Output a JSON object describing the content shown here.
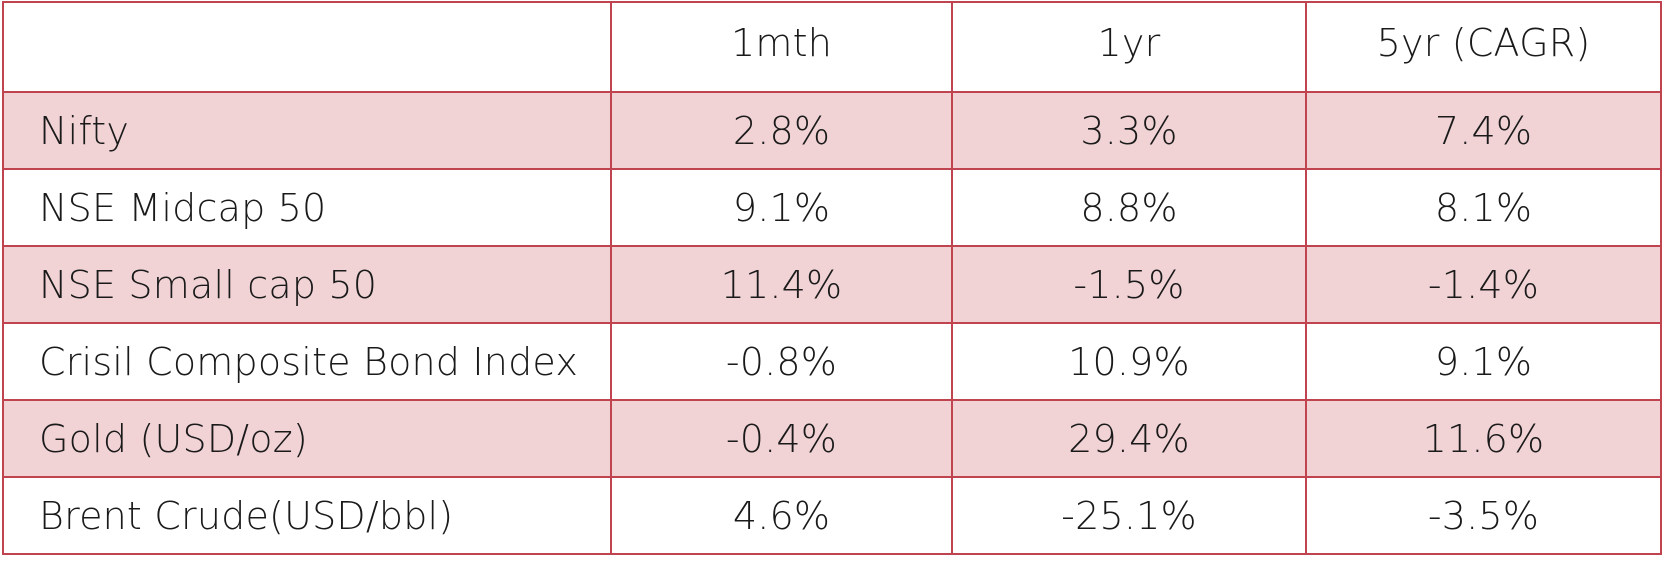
{
  "table": {
    "headers": [
      "",
      "1mth",
      "1yr",
      "5yr (CAGR)"
    ],
    "rows": [
      {
        "label": "Nifty",
        "m1": "2.8%",
        "y1": "3.3%",
        "y5": "7.4%"
      },
      {
        "label": "NSE Midcap 50",
        "m1": "9.1%",
        "y1": "8.8%",
        "y5": "8.1%"
      },
      {
        "label": "NSE Small cap 50",
        "m1": "11.4%",
        "y1": "-1.5%",
        "y5": "-1.4%"
      },
      {
        "label": "Crisil Composite Bond Index",
        "m1": "-0.8%",
        "y1": "10.9%",
        "y5": "9.1%"
      },
      {
        "label": "Gold (USD/oz)",
        "m1": "-0.4%",
        "y1": "29.4%",
        "y5": "11.6%"
      },
      {
        "label": "Brent Crude(USD/bbl)",
        "m1": "4.6%",
        "y1": "-25.1%",
        "y5": "-3.5%"
      }
    ]
  },
  "colors": {
    "border": "#c0444f",
    "shaded_row": "#f1d3d5",
    "plain_row": "#ffffff"
  }
}
